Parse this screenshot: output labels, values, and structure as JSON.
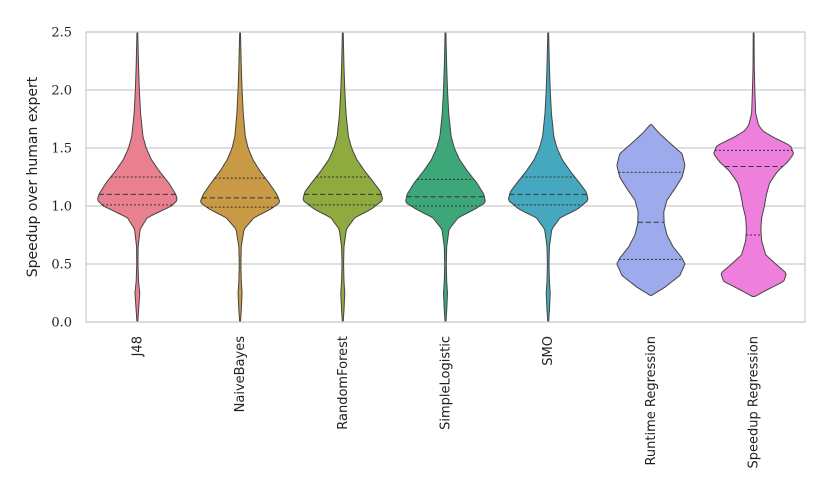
{
  "chart_data": {
    "type": "violin",
    "ylabel": "Speedup over human expert",
    "xlabel": "",
    "ylim": [
      0.0,
      2.5
    ],
    "yticks": [
      "0.0",
      "0.5",
      "1.0",
      "1.5",
      "2.0",
      "2.5"
    ],
    "grid": "horizontal",
    "legend": "none",
    "categories": [
      {
        "name": "J48",
        "color": "#E8808F",
        "min": 0.0,
        "max": 2.5,
        "q1": 1.01,
        "median": 1.1,
        "q3": 1.25,
        "profile": [
          [
            0.0,
            0.01
          ],
          [
            0.1,
            0.03
          ],
          [
            0.25,
            0.06
          ],
          [
            0.35,
            0.03
          ],
          [
            0.5,
            0.015
          ],
          [
            0.65,
            0.02
          ],
          [
            0.8,
            0.07
          ],
          [
            0.9,
            0.25
          ],
          [
            0.95,
            0.55
          ],
          [
            1.0,
            0.85
          ],
          [
            1.05,
            1.0
          ],
          [
            1.1,
            0.96
          ],
          [
            1.2,
            0.78
          ],
          [
            1.3,
            0.55
          ],
          [
            1.4,
            0.35
          ],
          [
            1.5,
            0.22
          ],
          [
            1.6,
            0.14
          ],
          [
            1.8,
            0.08
          ],
          [
            2.0,
            0.05
          ],
          [
            2.2,
            0.03
          ],
          [
            2.5,
            0.01
          ]
        ]
      },
      {
        "name": "NaiveBayes",
        "color": "#C89A45",
        "min": 0.0,
        "max": 2.5,
        "q1": 0.99,
        "median": 1.07,
        "q3": 1.24,
        "profile": [
          [
            0.0,
            0.01
          ],
          [
            0.1,
            0.03
          ],
          [
            0.25,
            0.05
          ],
          [
            0.35,
            0.03
          ],
          [
            0.5,
            0.02
          ],
          [
            0.65,
            0.03
          ],
          [
            0.8,
            0.1
          ],
          [
            0.9,
            0.35
          ],
          [
            0.97,
            0.75
          ],
          [
            1.03,
            1.0
          ],
          [
            1.1,
            0.92
          ],
          [
            1.2,
            0.72
          ],
          [
            1.3,
            0.5
          ],
          [
            1.4,
            0.32
          ],
          [
            1.5,
            0.2
          ],
          [
            1.6,
            0.13
          ],
          [
            1.8,
            0.08
          ],
          [
            2.0,
            0.05
          ],
          [
            2.2,
            0.03
          ],
          [
            2.5,
            0.01
          ]
        ]
      },
      {
        "name": "RandomForest",
        "color": "#8FAA3E",
        "min": 0.0,
        "max": 2.5,
        "q1": 1.01,
        "median": 1.1,
        "q3": 1.25,
        "profile": [
          [
            0.0,
            0.01
          ],
          [
            0.1,
            0.03
          ],
          [
            0.25,
            0.05
          ],
          [
            0.35,
            0.03
          ],
          [
            0.5,
            0.02
          ],
          [
            0.65,
            0.03
          ],
          [
            0.8,
            0.09
          ],
          [
            0.9,
            0.3
          ],
          [
            0.97,
            0.7
          ],
          [
            1.05,
            1.0
          ],
          [
            1.12,
            0.95
          ],
          [
            1.2,
            0.78
          ],
          [
            1.3,
            0.55
          ],
          [
            1.4,
            0.35
          ],
          [
            1.5,
            0.22
          ],
          [
            1.6,
            0.14
          ],
          [
            1.8,
            0.08
          ],
          [
            2.0,
            0.05
          ],
          [
            2.2,
            0.03
          ],
          [
            2.5,
            0.01
          ]
        ]
      },
      {
        "name": "SimpleLogistic",
        "color": "#3EA77A",
        "min": 0.0,
        "max": 2.5,
        "q1": 1.0,
        "median": 1.08,
        "q3": 1.23,
        "profile": [
          [
            0.0,
            0.01
          ],
          [
            0.1,
            0.03
          ],
          [
            0.25,
            0.05
          ],
          [
            0.35,
            0.03
          ],
          [
            0.5,
            0.02
          ],
          [
            0.65,
            0.03
          ],
          [
            0.8,
            0.09
          ],
          [
            0.9,
            0.32
          ],
          [
            0.97,
            0.72
          ],
          [
            1.03,
            1.0
          ],
          [
            1.1,
            0.96
          ],
          [
            1.2,
            0.78
          ],
          [
            1.3,
            0.55
          ],
          [
            1.4,
            0.35
          ],
          [
            1.5,
            0.22
          ],
          [
            1.6,
            0.14
          ],
          [
            1.8,
            0.08
          ],
          [
            2.0,
            0.05
          ],
          [
            2.2,
            0.03
          ],
          [
            2.5,
            0.01
          ]
        ]
      },
      {
        "name": "SMO",
        "color": "#45A8BF",
        "min": 0.0,
        "max": 2.5,
        "q1": 1.01,
        "median": 1.1,
        "q3": 1.25,
        "profile": [
          [
            0.0,
            0.01
          ],
          [
            0.1,
            0.03
          ],
          [
            0.25,
            0.05
          ],
          [
            0.35,
            0.03
          ],
          [
            0.5,
            0.02
          ],
          [
            0.65,
            0.03
          ],
          [
            0.8,
            0.09
          ],
          [
            0.9,
            0.3
          ],
          [
            0.97,
            0.72
          ],
          [
            1.05,
            1.0
          ],
          [
            1.12,
            0.95
          ],
          [
            1.2,
            0.78
          ],
          [
            1.3,
            0.55
          ],
          [
            1.4,
            0.35
          ],
          [
            1.5,
            0.22
          ],
          [
            1.6,
            0.14
          ],
          [
            1.8,
            0.08
          ],
          [
            2.0,
            0.05
          ],
          [
            2.2,
            0.03
          ],
          [
            2.5,
            0.01
          ]
        ]
      },
      {
        "name": "Runtime Regression",
        "color": "#9DAAEB",
        "min": 0.23,
        "max": 1.7,
        "q1": 0.54,
        "median": 0.86,
        "q3": 1.29,
        "profile": [
          [
            0.23,
            0.02
          ],
          [
            0.3,
            0.35
          ],
          [
            0.4,
            0.72
          ],
          [
            0.5,
            0.85
          ],
          [
            0.55,
            0.78
          ],
          [
            0.65,
            0.55
          ],
          [
            0.75,
            0.4
          ],
          [
            0.85,
            0.33
          ],
          [
            0.95,
            0.32
          ],
          [
            1.05,
            0.4
          ],
          [
            1.15,
            0.6
          ],
          [
            1.25,
            0.78
          ],
          [
            1.35,
            0.85
          ],
          [
            1.45,
            0.78
          ],
          [
            1.55,
            0.45
          ],
          [
            1.63,
            0.2
          ],
          [
            1.7,
            0.02
          ]
        ]
      },
      {
        "name": "Speedup Regression",
        "color": "#EE7FDC",
        "min": 0.22,
        "max": 2.5,
        "q1": 0.75,
        "median": 1.34,
        "q3": 1.48,
        "profile": [
          [
            0.22,
            0.03
          ],
          [
            0.28,
            0.35
          ],
          [
            0.35,
            0.75
          ],
          [
            0.42,
            0.82
          ],
          [
            0.5,
            0.55
          ],
          [
            0.58,
            0.3
          ],
          [
            0.7,
            0.2
          ],
          [
            0.8,
            0.18
          ],
          [
            0.9,
            0.2
          ],
          [
            1.0,
            0.27
          ],
          [
            1.1,
            0.32
          ],
          [
            1.2,
            0.4
          ],
          [
            1.3,
            0.6
          ],
          [
            1.38,
            0.85
          ],
          [
            1.45,
            1.0
          ],
          [
            1.52,
            0.92
          ],
          [
            1.6,
            0.45
          ],
          [
            1.65,
            0.22
          ],
          [
            1.7,
            0.12
          ],
          [
            1.8,
            0.05
          ],
          [
            2.0,
            0.03
          ],
          [
            2.2,
            0.015
          ],
          [
            2.5,
            0.01
          ]
        ]
      }
    ]
  }
}
